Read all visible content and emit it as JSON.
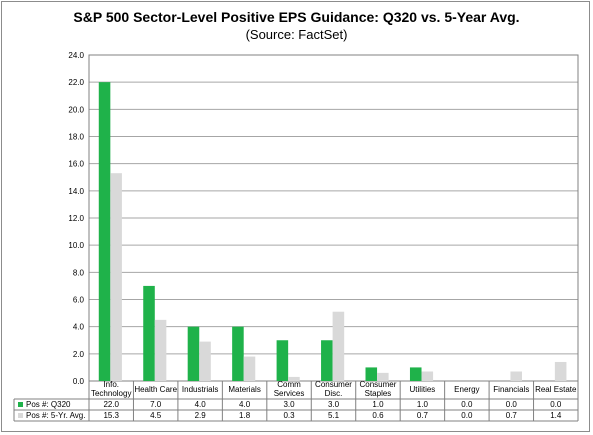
{
  "chart_data": {
    "type": "bar",
    "title": "S&P 500 Sector-Level Positive EPS Guidance: Q320 vs. 5-Year Avg.",
    "subtitle": "(Source: FactSet)",
    "categories": [
      [
        "Info.",
        "Technology"
      ],
      [
        "Health Care"
      ],
      [
        "Industrials"
      ],
      [
        "Materials"
      ],
      [
        "Comm",
        "Services"
      ],
      [
        "Consumer",
        "Disc."
      ],
      [
        "Consumer",
        "Staples"
      ],
      [
        "Utilities"
      ],
      [
        "Energy"
      ],
      [
        "Financials"
      ],
      [
        "Real Estate"
      ]
    ],
    "series": [
      {
        "name": "Pos #: Q320",
        "color": "#1fb24a",
        "values": [
          22.0,
          7.0,
          4.0,
          4.0,
          3.0,
          3.0,
          1.0,
          1.0,
          0.0,
          0.0,
          0.0
        ]
      },
      {
        "name": "Pos #: 5-Yr. Avg.",
        "color": "#d9d9d9",
        "values": [
          15.3,
          4.5,
          2.9,
          1.8,
          0.3,
          5.1,
          0.6,
          0.7,
          0.0,
          0.7,
          1.4
        ]
      }
    ],
    "ylim": [
      0,
      24
    ],
    "yticks": [
      0,
      2,
      4,
      6,
      8,
      10,
      12,
      14,
      16,
      18,
      20,
      22,
      24
    ],
    "grid": true,
    "legend": "data-table-left"
  }
}
